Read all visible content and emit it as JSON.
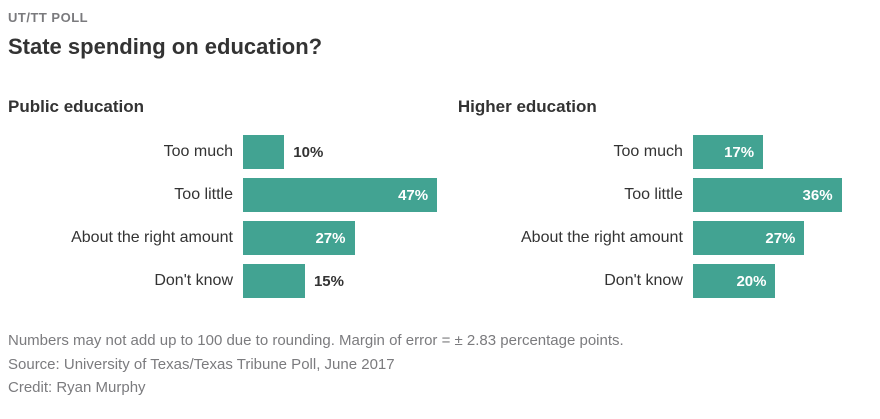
{
  "header": {
    "kicker": "UT/TT POLL",
    "title": "State spending on education?"
  },
  "charts": [
    {
      "title": "Public education",
      "rows": [
        {
          "label": "Too much",
          "value": 10,
          "display": "10%",
          "value_inside": false
        },
        {
          "label": "Too little",
          "value": 47,
          "display": "47%",
          "value_inside": true
        },
        {
          "label": "About the right amount",
          "value": 27,
          "display": "27%",
          "value_inside": true
        },
        {
          "label": "Don't know",
          "value": 15,
          "display": "15%",
          "value_inside": false
        }
      ]
    },
    {
      "title": "Higher education",
      "rows": [
        {
          "label": "Too much",
          "value": 17,
          "display": "17%",
          "value_inside": true
        },
        {
          "label": "Too little",
          "value": 36,
          "display": "36%",
          "value_inside": true
        },
        {
          "label": "About the right amount",
          "value": 27,
          "display": "27%",
          "value_inside": true
        },
        {
          "label": "Don't know",
          "value": 20,
          "display": "20%",
          "value_inside": true
        }
      ]
    }
  ],
  "footer": {
    "lines": [
      "Numbers may not add up to 100 due to rounding. Margin of error = ± 2.83 percentage points.",
      "Source: University of Texas/Texas Tribune Poll, June 2017",
      "Credit: Ryan Murphy"
    ]
  },
  "colors": {
    "bar": "#42a392",
    "title": "#333333",
    "kicker": "#7a7a7d",
    "footer_text": "#7b7b7e",
    "value_inside": "#ffffff",
    "value_outside": "#333333"
  },
  "chart_data": [
    {
      "type": "bar",
      "orientation": "horizontal",
      "title": "Public education",
      "categories": [
        "Too much",
        "Too little",
        "About the right amount",
        "Don't know"
      ],
      "values": [
        10,
        47,
        27,
        15
      ],
      "unit": "%",
      "xlim": [
        0,
        47
      ],
      "grid": false,
      "legend": false,
      "data_labels": [
        "10%",
        "47%",
        "27%",
        "15%"
      ]
    },
    {
      "type": "bar",
      "orientation": "horizontal",
      "title": "Higher education",
      "categories": [
        "Too much",
        "Too little",
        "About the right amount",
        "Don't know"
      ],
      "values": [
        17,
        36,
        27,
        20
      ],
      "unit": "%",
      "xlim": [
        0,
        47
      ],
      "grid": false,
      "legend": false,
      "data_labels": [
        "17%",
        "36%",
        "27%",
        "20%"
      ]
    }
  ]
}
